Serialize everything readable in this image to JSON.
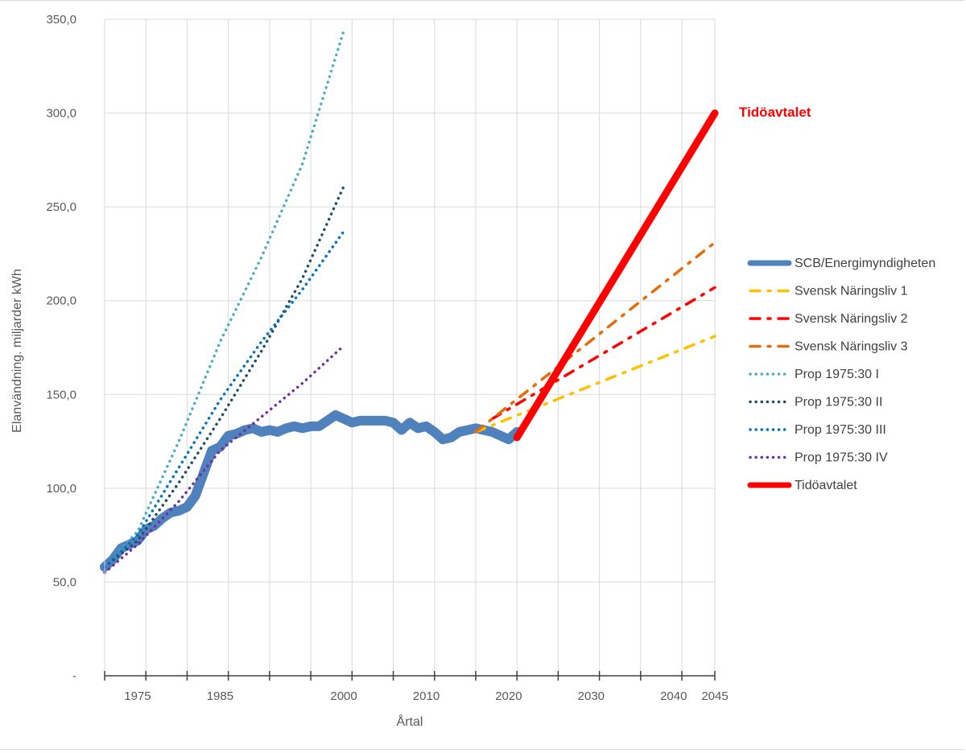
{
  "chart_data": {
    "type": "line",
    "title": "",
    "xlabel": "Årtal",
    "ylabel": "Elanvändning. miljarder kWh",
    "xlim": [
      1971,
      2045
    ],
    "ylim": [
      0,
      350
    ],
    "y_ticks": [
      {
        "value": 0,
        "label": "-"
      },
      {
        "value": 50,
        "label": "50,0"
      },
      {
        "value": 100,
        "label": "100,0"
      },
      {
        "value": 150,
        "label": "150,0"
      },
      {
        "value": 200,
        "label": "200,0"
      },
      {
        "value": 250,
        "label": "250,0"
      },
      {
        "value": 300,
        "label": "300,0"
      },
      {
        "value": 350,
        "label": "350,0"
      }
    ],
    "x_tick_marks": [
      1971,
      1976,
      1981,
      1986,
      1991,
      1996,
      2001,
      2006,
      2011,
      2016,
      2021,
      2026,
      2031,
      2036,
      2041,
      2045
    ],
    "x_grid": [
      1976,
      1981,
      1986,
      1991,
      1996,
      2001,
      2006,
      2011,
      2016,
      2021,
      2026,
      2031,
      2036,
      2041,
      2045
    ],
    "x_labels": [
      {
        "value": 1975,
        "label": "1975"
      },
      {
        "value": 1985,
        "label": "1985"
      },
      {
        "value": 2000,
        "label": "2000"
      },
      {
        "value": 2010,
        "label": "2010"
      },
      {
        "value": 2020,
        "label": "2020"
      },
      {
        "value": 2030,
        "label": "2030"
      },
      {
        "value": 2040,
        "label": "2040"
      },
      {
        "value": 2045,
        "label": "2045"
      }
    ],
    "grid": true,
    "legend_position": "right",
    "annotation": {
      "text": "Tidöavtalet",
      "x": 2045,
      "y": 300,
      "color": "#ff0000"
    },
    "series": [
      {
        "name": "SCB/Energimyndigheten",
        "color": "#4f81bd",
        "style": "solid-thick",
        "x": [
          1971,
          1972,
          1973,
          1974,
          1975,
          1976,
          1977,
          1978,
          1979,
          1980,
          1981,
          1982,
          1983,
          1984,
          1985,
          1986,
          1987,
          1988,
          1989,
          1990,
          1991,
          1992,
          1993,
          1994,
          1995,
          1996,
          1997,
          1998,
          1999,
          2000,
          2001,
          2002,
          2003,
          2004,
          2005,
          2006,
          2007,
          2008,
          2009,
          2010,
          2011,
          2012,
          2013,
          2014,
          2015,
          2016,
          2017,
          2018,
          2019,
          2020,
          2021
        ],
        "y": [
          58,
          62,
          68,
          70,
          72,
          78,
          80,
          84,
          87,
          88,
          90,
          96,
          108,
          120,
          122,
          128,
          129,
          131,
          132,
          130,
          131,
          130,
          132,
          133,
          132,
          133,
          133,
          136,
          139,
          137,
          135,
          136,
          136,
          136,
          136,
          135,
          131,
          135,
          132,
          133,
          130,
          126,
          127,
          130,
          131,
          132,
          131,
          130,
          128,
          126,
          130
        ]
      },
      {
        "name": "Svensk Näringsliv 1",
        "color": "#ffc000",
        "style": "dashdot",
        "x": [
          2016,
          2045
        ],
        "y": [
          130,
          181
        ]
      },
      {
        "name": "Svensk Näringsliv 2",
        "color": "#ff0000",
        "style": "dashdot",
        "x": [
          2018,
          2045
        ],
        "y": [
          137,
          207
        ]
      },
      {
        "name": "Svensk Näringsliv 3",
        "color": "#e46c0a",
        "style": "dashdot",
        "x": [
          2016,
          2045
        ],
        "y": [
          130,
          231
        ]
      },
      {
        "name": "Prop 1975:30 I",
        "color": "#4bacc6",
        "style": "dotted",
        "x": [
          1971,
          1975,
          1980,
          1985,
          1990,
          1995,
          2000
        ],
        "y": [
          58,
          77,
          125,
          178,
          223,
          273,
          344
        ]
      },
      {
        "name": "Prop 1975:30 II",
        "color": "#1f4e5f",
        "style": "dotted",
        "x": [
          1971,
          1975,
          1980,
          1985,
          1990,
          1995,
          2000
        ],
        "y": [
          58,
          72,
          103,
          137,
          173,
          212,
          261
        ]
      },
      {
        "name": "Prop 1975:30 III",
        "color": "#0070c0",
        "style": "dotted",
        "x": [
          1971,
          1975,
          1980,
          1985,
          1990,
          1995,
          2000
        ],
        "y": [
          58,
          75,
          111,
          147,
          178,
          206,
          237
        ]
      },
      {
        "name": "Prop 1975:30 IV",
        "color": "#7030a0",
        "style": "dotted",
        "x": [
          1971,
          1975,
          1980,
          1985,
          1990,
          1995,
          2000
        ],
        "y": [
          55,
          70,
          93,
          120,
          138,
          156,
          176
        ]
      },
      {
        "name": "Tidöavtalet",
        "color": "#ff0000",
        "style": "solid-thick",
        "x": [
          2021,
          2045
        ],
        "y": [
          127,
          300
        ]
      }
    ]
  }
}
